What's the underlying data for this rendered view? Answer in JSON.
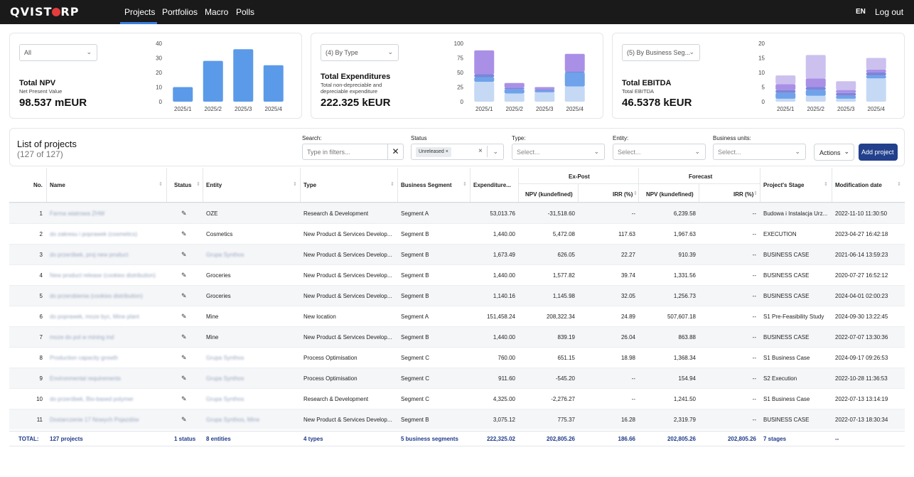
{
  "brand": {
    "logo_left": "QVIST",
    "logo_right": "RP"
  },
  "nav": {
    "items": [
      "Projects",
      "Portfolios",
      "Macro",
      "Polls"
    ],
    "active": "Projects",
    "lang": "EN",
    "logout": "Log out"
  },
  "cards": [
    {
      "dropdown": "All",
      "title": "Total NPV",
      "subtitle": "Net Present Value",
      "value": "98.537 mEUR",
      "chart_data": {
        "type": "bar",
        "categories": [
          "2025/1",
          "2025/2",
          "2025/3",
          "2025/4"
        ],
        "series": [
          {
            "values": [
              10,
              28,
              36,
              25
            ],
            "color": "#5b9ae8"
          }
        ],
        "yticks": [
          "40",
          "30",
          "20",
          "10",
          "0"
        ],
        "ylim": [
          0,
          40
        ]
      }
    },
    {
      "dropdown": "(4) By Type",
      "title": "Total Expenditures",
      "subtitle": "Total non-depreciable and depreciable expenditure",
      "value": "222.325 kEUR",
      "chart_data": {
        "type": "bar",
        "stacked": true,
        "categories": [
          "2025/1",
          "2025/2",
          "2025/3",
          "2025/4"
        ],
        "series": [
          {
            "values": [
              34,
              14,
              16,
              26
            ],
            "color": "#c5d9f5"
          },
          {
            "values": [
              8,
              7,
              3,
              24
            ],
            "color": "#6fa2ea"
          },
          {
            "values": [
              5,
              3,
              2,
              2
            ],
            "color": "#7b86d9"
          },
          {
            "values": [
              41,
              8,
              4,
              30
            ],
            "color": "#a990e6"
          }
        ],
        "yticks": [
          "100",
          "75",
          "50",
          "25",
          "0"
        ],
        "ylim": [
          0,
          100
        ]
      }
    },
    {
      "dropdown": "(5) By Business Seg...",
      "title": "Total EBITDA",
      "subtitle": "Total EBITDA",
      "value": "46.5378 kEUR",
      "chart_data": {
        "type": "bar",
        "stacked": true,
        "categories": [
          "2025/1",
          "2025/2",
          "2025/3",
          "2025/4"
        ],
        "series": [
          {
            "values": [
              1,
              2,
              1,
              8
            ],
            "color": "#c5d9f5"
          },
          {
            "values": [
              2,
              2,
              1,
              1
            ],
            "color": "#6fa2ea"
          },
          {
            "values": [
              1,
              1,
              1,
              1
            ],
            "color": "#7b86d9"
          },
          {
            "values": [
              2,
              3,
              1,
              1
            ],
            "color": "#a990e6"
          },
          {
            "values": [
              3,
              8,
              3,
              4
            ],
            "color": "#ccc0ef"
          }
        ],
        "yticks": [
          "20",
          "15",
          "10",
          "5",
          "0"
        ],
        "ylim": [
          0,
          20
        ]
      }
    }
  ],
  "list": {
    "title": "List of projects",
    "count": "(127 of 127)",
    "search_label": "Search:",
    "search_placeholder": "Type in filters...",
    "status_label": "Status",
    "status_chip": "Unreleased",
    "type_label": "Type:",
    "entity_label": "Entity:",
    "bu_label": "Business units:",
    "select_placeholder": "Select...",
    "actions": "Actions",
    "add": "Add project"
  },
  "table": {
    "headers": {
      "no": "No.",
      "name": "Name",
      "status": "Status",
      "entity": "Entity",
      "type": "Type",
      "segment": "Business Segment",
      "expenditure": "Expenditure...",
      "expost": "Ex-Post",
      "forecast": "Forecast",
      "npv": "NPV (kundefined)",
      "irr": "IRR (%)",
      "stage": "Project's Stage",
      "moddate": "Modification date"
    },
    "rows": [
      {
        "no": "1",
        "name": "Farma wiatrowa ZHW",
        "entity": "OZE",
        "entity_blur": false,
        "type": "Research & Development",
        "segment": "Segment A",
        "exp": "53,013.76",
        "npv_ep": "-31,518.60",
        "irr_ep": "--",
        "npv_fc": "6,239.58",
        "irr_fc": "--",
        "stage": "Budowa i Instalacja Urz...",
        "date": "2022-11-10 11:30:50"
      },
      {
        "no": "2",
        "name": "do zakresu i poprawek (cosmetics)",
        "entity": "Cosmetics",
        "entity_blur": false,
        "type": "New Product & Services Develop...",
        "segment": "Segment B",
        "exp": "1,440.00",
        "npv_ep": "5,472.08",
        "irr_ep": "117.63",
        "npv_fc": "1,967.63",
        "irr_fc": "--",
        "stage": "EXECUTION",
        "date": "2023-04-27 16:42:18"
      },
      {
        "no": "3",
        "name": "do przeróbek, proj new product",
        "entity": "Grupa Synthos",
        "entity_blur": true,
        "type": "New Product & Services Develop...",
        "segment": "Segment B",
        "exp": "1,673.49",
        "npv_ep": "626.05",
        "irr_ep": "22.27",
        "npv_fc": "910.39",
        "irr_fc": "--",
        "stage": "BUSINESS CASE",
        "date": "2021-06-14 13:59:23"
      },
      {
        "no": "4",
        "name": "New product release (cookies distribution)",
        "entity": "Groceries",
        "entity_blur": false,
        "type": "New Product & Services Develop...",
        "segment": "Segment B",
        "exp": "1,440.00",
        "npv_ep": "1,577.82",
        "irr_ep": "39.74",
        "npv_fc": "1,331.56",
        "irr_fc": "--",
        "stage": "BUSINESS CASE",
        "date": "2020-07-27 16:52:12"
      },
      {
        "no": "5",
        "name": "do przerobienia (cookies distribution)",
        "entity": "Groceries",
        "entity_blur": false,
        "type": "New Product & Services Develop...",
        "segment": "Segment B",
        "exp": "1,140.16",
        "npv_ep": "1,145.98",
        "irr_ep": "32.05",
        "npv_fc": "1,256.73",
        "irr_fc": "--",
        "stage": "BUSINESS CASE",
        "date": "2024-04-01 02:00:23"
      },
      {
        "no": "6",
        "name": "do poprawek, moze byc, Mine plant",
        "entity": "Mine",
        "entity_blur": false,
        "type": "New location",
        "segment": "Segment A",
        "exp": "151,458.24",
        "npv_ep": "208,322.34",
        "irr_ep": "24.89",
        "npv_fc": "507,607.18",
        "irr_fc": "--",
        "stage": "S1 Pre-Feasibility Study",
        "date": "2024-09-30 13:22:45"
      },
      {
        "no": "7",
        "name": "moze do pol w mining ind",
        "entity": "Mine",
        "entity_blur": false,
        "type": "New Product & Services Develop...",
        "segment": "Segment B",
        "exp": "1,440.00",
        "npv_ep": "839.19",
        "irr_ep": "26.04",
        "npv_fc": "863.88",
        "irr_fc": "--",
        "stage": "BUSINESS CASE",
        "date": "2022-07-07 13:30:36"
      },
      {
        "no": "8",
        "name": "Production capacity growth",
        "entity": "Grupa Synthos",
        "entity_blur": true,
        "type": "Process Optimisation",
        "segment": "Segment C",
        "exp": "760.00",
        "npv_ep": "651.15",
        "irr_ep": "18.98",
        "npv_fc": "1,368.34",
        "irr_fc": "--",
        "stage": "S1 Business Case",
        "date": "2024-09-17 09:26:53"
      },
      {
        "no": "9",
        "name": "Environmental requirements",
        "entity": "Grupa Synthos",
        "entity_blur": true,
        "type": "Process Optimisation",
        "segment": "Segment C",
        "exp": "911.60",
        "npv_ep": "-545.20",
        "irr_ep": "--",
        "npv_fc": "154.94",
        "irr_fc": "--",
        "stage": "S2 Execution",
        "date": "2022-10-28 11:36:53"
      },
      {
        "no": "10",
        "name": "do przeróbek, Bio-based polymer",
        "entity": "Grupa Synthos",
        "entity_blur": true,
        "type": "Research & Development",
        "segment": "Segment C",
        "exp": "4,325.00",
        "npv_ep": "-2,276.27",
        "irr_ep": "--",
        "npv_fc": "1,241.50",
        "irr_fc": "--",
        "stage": "S1 Business Case",
        "date": "2022-07-13 13:14:19"
      },
      {
        "no": "11",
        "name": "Dostarczenie 17 Nowych Pojazdów",
        "entity": "Grupa Synthos, Mine",
        "entity_blur": true,
        "type": "New Product & Services Develop...",
        "segment": "Segment B",
        "exp": "3,075.12",
        "npv_ep": "775.37",
        "irr_ep": "16.28",
        "npv_fc": "2,319.79",
        "irr_fc": "--",
        "stage": "BUSINESS CASE",
        "date": "2022-07-13 18:30:34"
      }
    ],
    "totals": {
      "label": "TOTAL:",
      "name": "127 projects",
      "status": "1 status",
      "entity": "8 entities",
      "type": "4 types",
      "segment": "5 business segments",
      "exp": "222,325.02",
      "npv_ep": "202,805.26",
      "irr_ep": "186.66",
      "npv_fc": "202,805.26",
      "irr_fc": "202,805.26",
      "stage": "7 stages",
      "date": "--"
    }
  }
}
